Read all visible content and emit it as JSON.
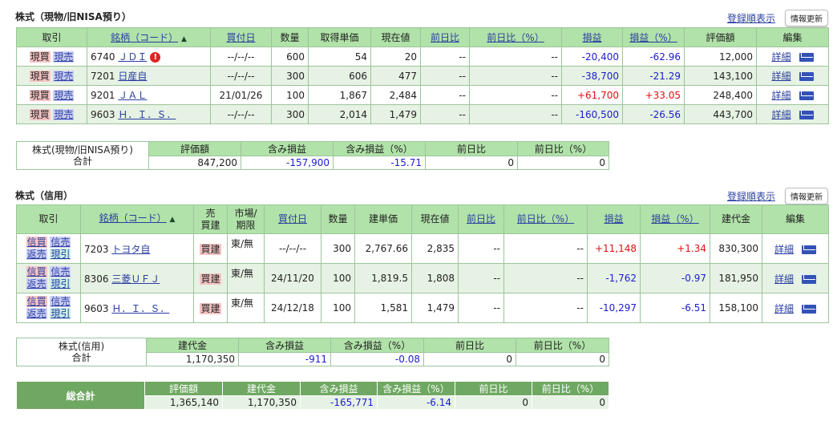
{
  "section1": {
    "title": "株式（現物/旧NISA預り）",
    "order_link": "登録順表示",
    "refresh": "情報更新",
    "headers": [
      "取引",
      "銘柄（コード）",
      "買付日",
      "数量",
      "取得単価",
      "現在値",
      "前日比",
      "前日比（%）",
      "損益",
      "損益（%）",
      "評価額",
      "編集"
    ],
    "sort_indicator": "▲",
    "rows": [
      {
        "buy": "現買",
        "sell": "現売",
        "code": "6740",
        "name": "ＪＤＩ",
        "warn": "!",
        "date": "--/--/--",
        "qty": "600",
        "cost": "54",
        "price": "20",
        "chg": "--",
        "chgp": "--",
        "pl": "-20,400",
        "plp": "-62.96",
        "value": "12,000",
        "detail": "詳細"
      },
      {
        "buy": "現買",
        "sell": "現売",
        "code": "7201",
        "name": "日産自",
        "date": "--/--/--",
        "qty": "300",
        "cost": "606",
        "price": "477",
        "chg": "--",
        "chgp": "--",
        "pl": "-38,700",
        "plp": "-21.29",
        "value": "143,100",
        "detail": "詳細"
      },
      {
        "buy": "現買",
        "sell": "現売",
        "code": "9201",
        "name": "ＪＡＬ",
        "date": "21/01/26",
        "qty": "100",
        "cost": "1,867",
        "price": "2,484",
        "chg": "--",
        "chgp": "--",
        "pl": "+61,700",
        "plp": "+33.05",
        "value": "248,400",
        "detail": "詳細"
      },
      {
        "buy": "現買",
        "sell": "現売",
        "code": "9603",
        "name": "Ｈ．Ｉ．Ｓ．",
        "date": "--/--/--",
        "qty": "300",
        "cost": "2,014",
        "price": "1,479",
        "chg": "--",
        "chgp": "--",
        "pl": "-160,500",
        "plp": "-26.56",
        "value": "443,700",
        "detail": "詳細"
      }
    ]
  },
  "summary1": {
    "label1": "株式(現物/旧NISA預り)",
    "label2": "合計",
    "headers": [
      "評価額",
      "含み損益",
      "含み損益（%）",
      "前日比",
      "前日比（%）"
    ],
    "values": [
      "847,200",
      "-157,900",
      "-15.71",
      "0",
      "0"
    ]
  },
  "section2": {
    "title": "株式（信用）",
    "order_link": "登録順表示",
    "refresh": "情報更新",
    "headers": [
      "取引",
      "銘柄（コード）",
      "売\n買建",
      "市場/\n期限",
      "買付日",
      "数量",
      "建単価",
      "現在値",
      "前日比",
      "前日比（%）",
      "損益",
      "損益（%）",
      "建代金",
      "編集"
    ],
    "rows": [
      {
        "a": "信買",
        "b": "信売",
        "c": "返売",
        "d": "現引",
        "code": "7203",
        "name": "トヨタ自",
        "side": "買建",
        "market": "東/無",
        "date": "--/--/--",
        "qty": "300",
        "cost": "2,767.66",
        "price": "2,835",
        "chg": "--",
        "chgp": "--",
        "pl": "+11,148",
        "plp": "+1.34",
        "value": "830,300",
        "detail": "詳細"
      },
      {
        "a": "信買",
        "b": "信売",
        "c": "返売",
        "d": "現引",
        "code": "8306",
        "name": "三菱ＵＦＪ",
        "side": "買建",
        "market": "東/無",
        "date": "24/11/20",
        "qty": "100",
        "cost": "1,819.5",
        "price": "1,808",
        "chg": "--",
        "chgp": "--",
        "pl": "-1,762",
        "plp": "-0.97",
        "value": "181,950",
        "detail": "詳細"
      },
      {
        "a": "信買",
        "b": "信売",
        "c": "返売",
        "d": "現引",
        "code": "9603",
        "name": "Ｈ．Ｉ．Ｓ．",
        "side": "買建",
        "market": "東/無",
        "date": "24/12/18",
        "qty": "100",
        "cost": "1,581",
        "price": "1,479",
        "chg": "--",
        "chgp": "--",
        "pl": "-10,297",
        "plp": "-6.51",
        "value": "158,100",
        "detail": "詳細"
      }
    ]
  },
  "summary2": {
    "label1": "株式(信用)",
    "label2": "合計",
    "headers": [
      "建代金",
      "含み損益",
      "含み損益（%）",
      "前日比",
      "前日比（%）"
    ],
    "values": [
      "1,170,350",
      "-911",
      "-0.08",
      "0",
      "0"
    ]
  },
  "total": {
    "label": "総合計",
    "headers": [
      "評価額",
      "建代金",
      "含み損益",
      "含み損益（%）",
      "前日比",
      "前日比（%）"
    ],
    "values": [
      "1,365,140",
      "1,170,350",
      "-165,771",
      "-6.14",
      "0",
      "0"
    ]
  }
}
